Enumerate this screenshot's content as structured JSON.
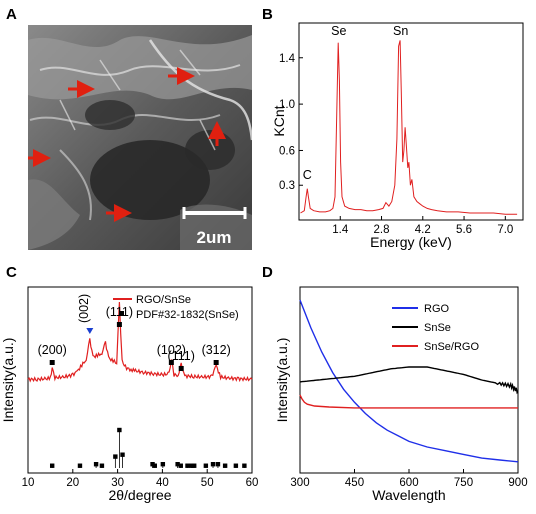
{
  "panel_labels": [
    "A",
    "B",
    "C",
    "D"
  ],
  "sem": {
    "scale_bar_label": "2um",
    "arrow_color": "#e02010"
  },
  "chart_data": [
    {
      "panel": "B",
      "type": "line",
      "xlabel": "Energy (keV)",
      "ylabel": "KCnt",
      "xticks": [
        "1.4",
        "2.8",
        "4.2",
        "5.6",
        "7.0"
      ],
      "yticks": [
        "0.3",
        "0.6",
        "1.0",
        "1.4"
      ],
      "xlim": [
        0.0,
        7.6
      ],
      "ylim": [
        0.0,
        1.7
      ],
      "color": "#e02020",
      "annotations": [
        {
          "text": "C",
          "x": 0.28,
          "y": 0.33
        },
        {
          "text": "Se",
          "x": 1.35,
          "y": 1.57
        },
        {
          "text": "Sn",
          "x": 3.45,
          "y": 1.57
        }
      ],
      "series": [
        {
          "x": [
            0.05,
            0.18,
            0.24,
            0.28,
            0.32,
            0.38,
            0.5,
            0.7,
            0.9,
            1.05,
            1.15,
            1.22,
            1.28,
            1.33,
            1.37,
            1.41,
            1.46,
            1.55,
            1.7,
            1.9,
            2.1,
            2.3,
            2.5,
            2.7,
            2.85,
            2.95,
            3.05,
            3.15,
            3.25,
            3.32,
            3.38,
            3.43,
            3.47,
            3.52,
            3.56,
            3.6,
            3.64,
            3.69,
            3.73,
            3.78,
            3.83,
            3.9,
            4.0,
            4.1,
            4.2,
            4.35,
            4.5,
            4.7,
            5.0,
            5.4,
            5.8,
            6.2,
            6.6,
            7.0,
            7.4
          ],
          "y": [
            0.06,
            0.08,
            0.2,
            0.27,
            0.2,
            0.1,
            0.08,
            0.07,
            0.07,
            0.08,
            0.1,
            0.2,
            0.9,
            1.53,
            1.2,
            0.5,
            0.2,
            0.12,
            0.1,
            0.09,
            0.09,
            0.08,
            0.08,
            0.09,
            0.1,
            0.15,
            0.12,
            0.16,
            0.3,
            0.7,
            1.5,
            1.55,
            1.1,
            0.5,
            0.6,
            0.8,
            0.65,
            0.45,
            0.5,
            0.3,
            0.35,
            0.2,
            0.16,
            0.14,
            0.12,
            0.1,
            0.09,
            0.08,
            0.07,
            0.07,
            0.06,
            0.06,
            0.06,
            0.05,
            0.05
          ]
        }
      ]
    },
    {
      "panel": "C",
      "type": "line",
      "xlabel": "2θ/degree",
      "ylabel": "Intensity(a.u.)",
      "xticks": [
        "10",
        "20",
        "30",
        "40",
        "50",
        "60"
      ],
      "xlim": [
        10,
        60
      ],
      "colors": {
        "rgo_snse": "#e02020",
        "pdf": "#000000",
        "triangle": "#1a3fd0"
      },
      "legend": [
        {
          "label": "RGO/SnSe",
          "style": "line"
        },
        {
          "label": "PDF#32-1832(SnSe)",
          "style": "square"
        }
      ],
      "peak_labels": [
        {
          "text": "(200)",
          "x": 15.4,
          "marker": "square"
        },
        {
          "text": "(002)",
          "x": 23.8,
          "marker": "triangle"
        },
        {
          "text": "(111)",
          "x": 30.4,
          "marker": "square"
        },
        {
          "text": "(102)",
          "x": 42.0,
          "marker": "square"
        },
        {
          "text": "(111)",
          "x": 44.2,
          "marker": "square"
        },
        {
          "text": "(312)",
          "x": 52.0,
          "marker": "square"
        }
      ],
      "xrd_series": {
        "x": [
          10,
          12,
          14,
          15,
          15.4,
          16,
          18,
          20,
          21,
          22,
          23,
          23.8,
          24.5,
          25.5,
          26.5,
          27.3,
          28,
          29,
          29.8,
          30.4,
          31,
          31.5,
          32,
          33,
          34,
          36,
          38,
          40,
          41.5,
          42,
          42.6,
          43.5,
          44.2,
          45,
          47,
          49,
          51,
          52,
          53,
          55,
          57,
          60
        ],
        "y": [
          0.1,
          0.1,
          0.11,
          0.12,
          0.3,
          0.13,
          0.14,
          0.18,
          0.24,
          0.35,
          0.45,
          0.8,
          0.5,
          0.52,
          0.56,
          0.75,
          0.48,
          0.42,
          0.4,
          1.45,
          0.42,
          0.35,
          0.3,
          0.27,
          0.25,
          0.22,
          0.2,
          0.18,
          0.2,
          0.45,
          0.18,
          0.17,
          0.36,
          0.16,
          0.15,
          0.14,
          0.15,
          0.34,
          0.14,
          0.12,
          0.11,
          0.1
        ]
      },
      "pdf_reference": {
        "positions": [
          15.4,
          21.6,
          25.2,
          26.5,
          29.5,
          30.4,
          31.1,
          37.8,
          38.3,
          40.1,
          43.4,
          44.1,
          45.6,
          46.5,
          47.1,
          49.7,
          51.3,
          52.4,
          54.0,
          56.4,
          58.3
        ],
        "intensities": [
          0.06,
          0.06,
          0.1,
          0.06,
          0.3,
          1.0,
          0.35,
          0.1,
          0.06,
          0.1,
          0.1,
          0.06,
          0.06,
          0.06,
          0.06,
          0.06,
          0.1,
          0.1,
          0.06,
          0.06,
          0.06
        ]
      }
    },
    {
      "panel": "D",
      "type": "line",
      "xlabel": "Wavelength",
      "ylabel": "Intensity(a.u.)",
      "xticks": [
        "300",
        "450",
        "600",
        "750",
        "900"
      ],
      "xlim": [
        300,
        900
      ],
      "series": [
        {
          "name": "RGO",
          "color": "#1f2fe8",
          "x": [
            300,
            330,
            360,
            390,
            420,
            450,
            480,
            510,
            540,
            570,
            600,
            650,
            700,
            750,
            800,
            850,
            900
          ],
          "y": [
            0.93,
            0.78,
            0.65,
            0.54,
            0.45,
            0.38,
            0.32,
            0.27,
            0.23,
            0.2,
            0.17,
            0.14,
            0.12,
            0.1,
            0.08,
            0.07,
            0.06
          ]
        },
        {
          "name": "SnSe",
          "color": "#000000",
          "x": [
            300,
            350,
            400,
            450,
            500,
            550,
            600,
            650,
            700,
            750,
            800,
            850,
            880,
            900
          ],
          "y": [
            0.49,
            0.5,
            0.51,
            0.52,
            0.54,
            0.56,
            0.57,
            0.57,
            0.55,
            0.53,
            0.5,
            0.48,
            0.47,
            0.44
          ]
        },
        {
          "name": "SnSe/RGO",
          "color": "#e02020",
          "x": [
            300,
            305,
            312,
            320,
            340,
            380,
            450,
            550,
            650,
            750,
            850,
            900
          ],
          "y": [
            0.42,
            0.4,
            0.38,
            0.37,
            0.36,
            0.355,
            0.35,
            0.35,
            0.35,
            0.35,
            0.35,
            0.35
          ]
        }
      ]
    }
  ]
}
